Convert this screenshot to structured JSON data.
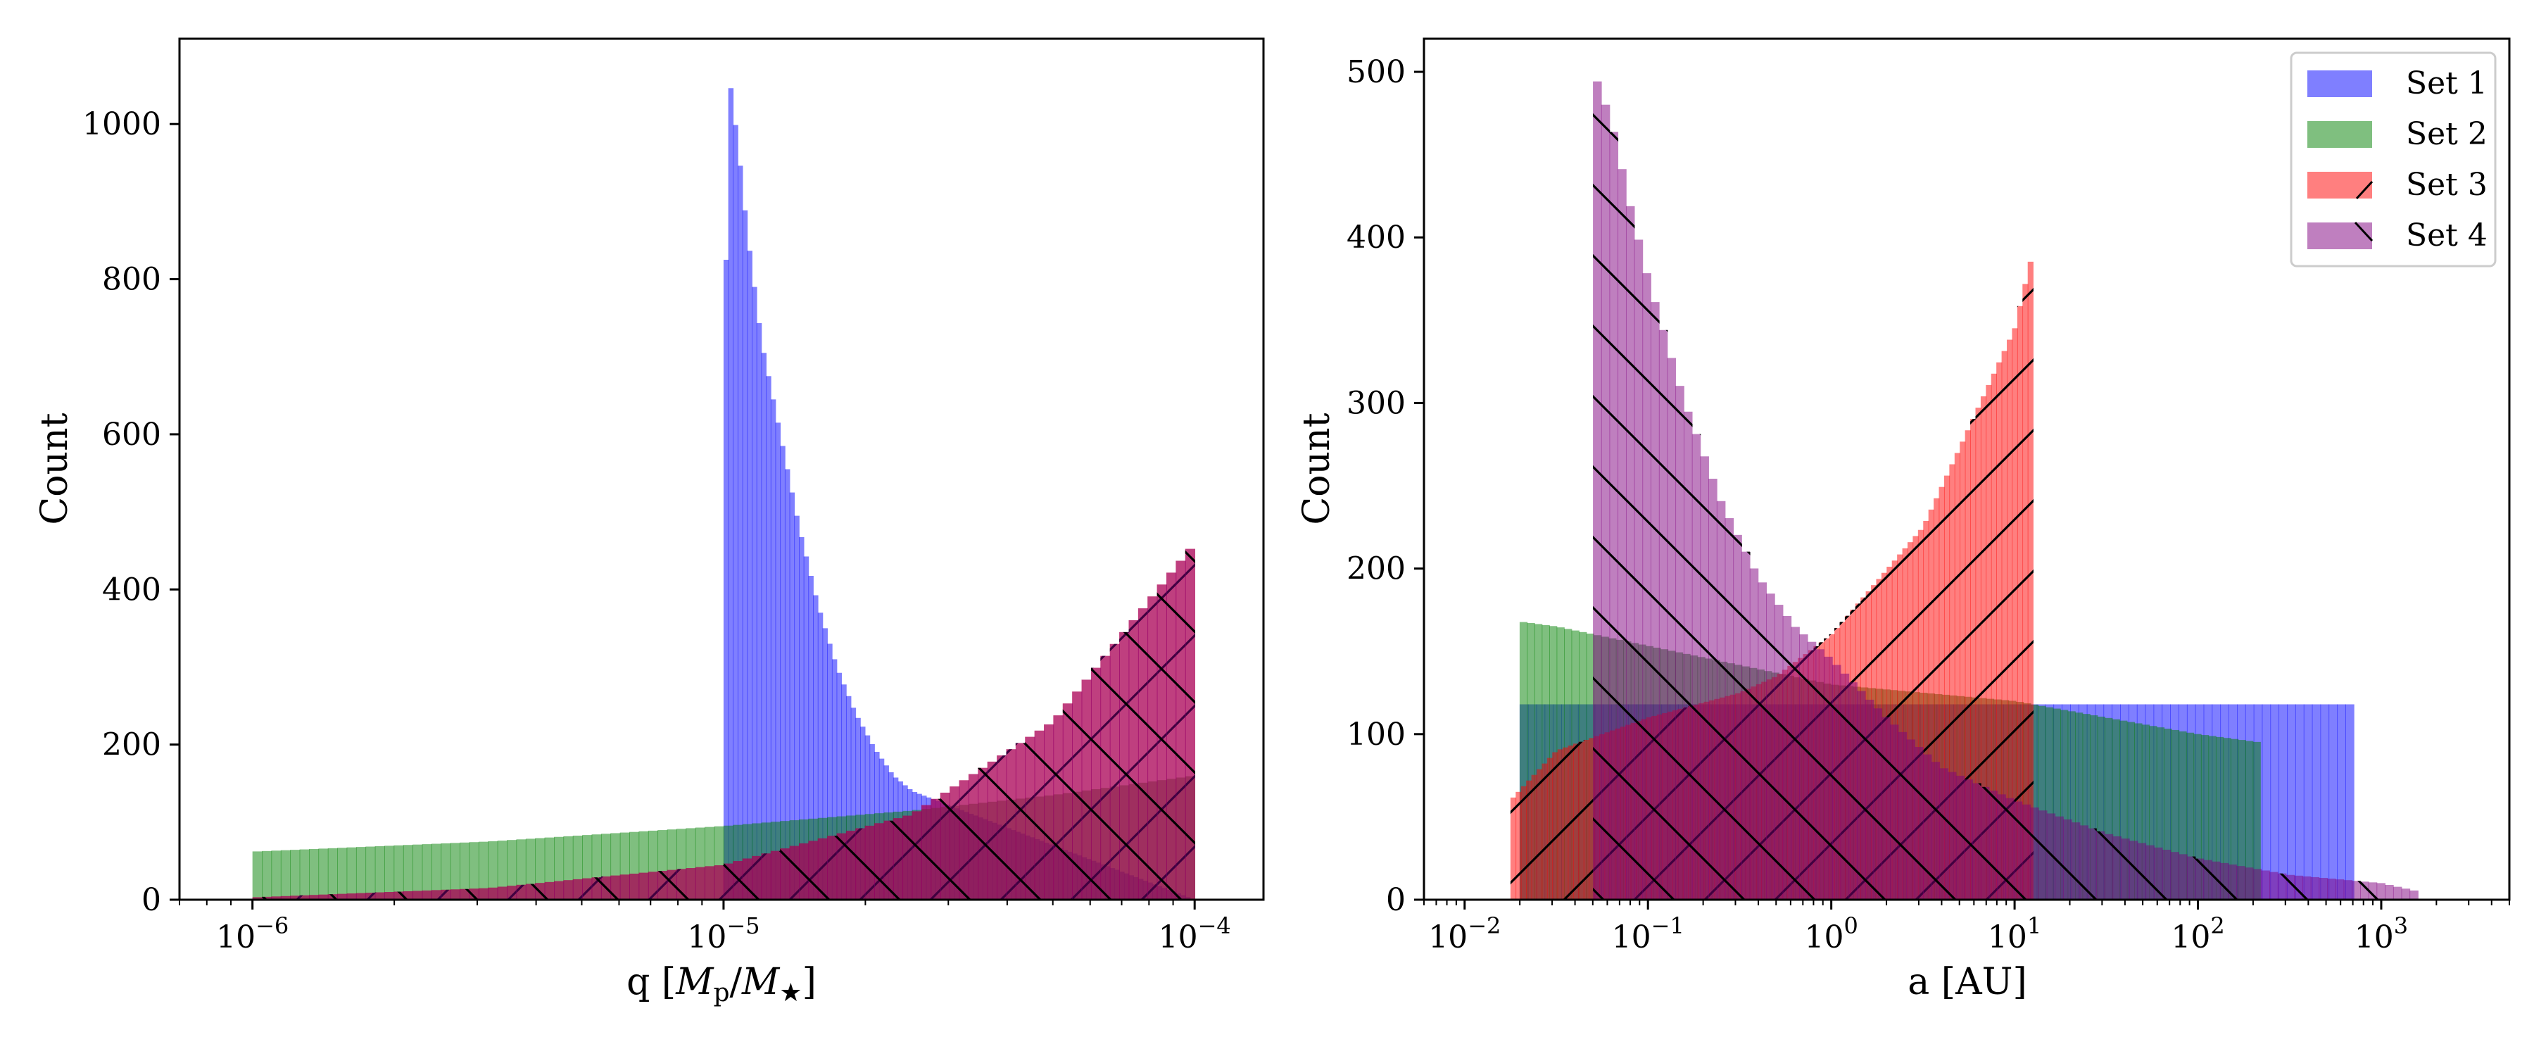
{
  "chart_data": [
    {
      "type": "histogram",
      "title": "",
      "xlabel": "q [M_p/M_★]",
      "xlabel_parts": {
        "prefix": "q [",
        "num": "M",
        "num_sub": "p",
        "slash": "/",
        "den": "M",
        "den_sub": "★",
        "suffix": "]"
      },
      "ylabel": "Count",
      "xscale": "log",
      "xlim": [
        7e-07,
        0.00014
      ],
      "ylim": [
        0,
        1110
      ],
      "x_ticks": [
        {
          "value": 1e-06,
          "label_base": "10",
          "label_exp": "−6"
        },
        {
          "value": 1e-05,
          "label_base": "10",
          "label_exp": "−5"
        },
        {
          "value": 0.0001,
          "label_base": "10",
          "label_exp": "−4"
        }
      ],
      "y_ticks": [
        {
          "value": 0,
          "label": "0"
        },
        {
          "value": 200,
          "label": "200"
        },
        {
          "value": 400,
          "label": "400"
        },
        {
          "value": 600,
          "label": "600"
        },
        {
          "value": 800,
          "label": "800"
        },
        {
          "value": 1000,
          "label": "1000"
        }
      ],
      "series": [
        {
          "name": "Set 1",
          "color": "#0000ff",
          "hatch": "none",
          "log_range": [
            -5.0,
            -4.0
          ],
          "nbins": 100,
          "anchors": [
            [
              -5.0,
              580
            ],
            [
              -4.99,
              1070
            ],
            [
              -4.97,
              975
            ],
            [
              -4.95,
              860
            ],
            [
              -4.92,
              720
            ],
            [
              -4.88,
              600
            ],
            [
              -4.84,
              480
            ],
            [
              -4.8,
              380
            ],
            [
              -4.76,
              300
            ],
            [
              -4.72,
              240
            ],
            [
              -4.68,
              195
            ],
            [
              -4.64,
              160
            ],
            [
              -4.6,
              140
            ],
            [
              -4.0,
              0
            ]
          ]
        },
        {
          "name": "Set 2",
          "color": "#008000",
          "hatch": "none",
          "log_range": [
            -6.0,
            -4.0
          ],
          "nbins": 100,
          "anchors": [
            [
              -6.0,
              62
            ],
            [
              -5.5,
              75
            ],
            [
              -5.0,
              95
            ],
            [
              -4.6,
              115
            ],
            [
              -4.3,
              135
            ],
            [
              -4.0,
              160
            ]
          ]
        },
        {
          "name": "Set 3",
          "color": "#ff0000",
          "hatch": "/",
          "log_range": [
            -6.0,
            -4.0
          ],
          "nbins": 100,
          "anchors": [
            [
              -6.0,
              3
            ],
            [
              -5.5,
              15
            ],
            [
              -5.0,
              45
            ],
            [
              -4.6,
              110
            ],
            [
              -4.3,
              230
            ],
            [
              -4.0,
              460
            ]
          ]
        },
        {
          "name": "Set 4",
          "color": "#800080",
          "hatch": "\\",
          "log_range": [
            -6.0,
            -4.0
          ],
          "nbins": 100,
          "anchors": [
            [
              -6.0,
              3
            ],
            [
              -5.5,
              15
            ],
            [
              -5.0,
              45
            ],
            [
              -4.6,
              110
            ],
            [
              -4.3,
              230
            ],
            [
              -4.0,
              460
            ]
          ]
        }
      ]
    },
    {
      "type": "histogram",
      "title": "",
      "xlabel": "a [AU]",
      "ylabel": "Count",
      "xscale": "log",
      "xlim": [
        0.006,
        5000
      ],
      "ylim": [
        0,
        520
      ],
      "x_ticks": [
        {
          "value": 0.01,
          "label_base": "10",
          "label_exp": "−2"
        },
        {
          "value": 0.1,
          "label_base": "10",
          "label_exp": "−1"
        },
        {
          "value": 1,
          "label_base": "10",
          "label_exp": "0"
        },
        {
          "value": 10,
          "label_base": "10",
          "label_exp": "1"
        },
        {
          "value": 100,
          "label_base": "10",
          "label_exp": "2"
        },
        {
          "value": 1000,
          "label_base": "10",
          "label_exp": "3"
        }
      ],
      "y_ticks": [
        {
          "value": 0,
          "label": "0"
        },
        {
          "value": 100,
          "label": "100"
        },
        {
          "value": 200,
          "label": "200"
        },
        {
          "value": 300,
          "label": "300"
        },
        {
          "value": 400,
          "label": "400"
        },
        {
          "value": 500,
          "label": "500"
        }
      ],
      "legend_position": "upper right",
      "series": [
        {
          "name": "Set 1",
          "color": "#0000ff",
          "hatch": "none",
          "log_range": [
            -1.7,
            2.85
          ],
          "nbins": 100,
          "anchors": [
            [
              -1.7,
              118
            ],
            [
              2.85,
              118
            ]
          ]
        },
        {
          "name": "Set 2",
          "color": "#008000",
          "hatch": "none",
          "log_range": [
            -1.7,
            2.34
          ],
          "nbins": 100,
          "anchors": [
            [
              -1.7,
              168
            ],
            [
              -1.5,
              165
            ],
            [
              0.0,
              130
            ],
            [
              1.0,
              120
            ],
            [
              2.0,
              100
            ],
            [
              2.34,
              95
            ]
          ]
        },
        {
          "name": "Set 3",
          "color": "#ff0000",
          "hatch": "/",
          "log_range": [
            -1.75,
            1.1
          ],
          "nbins": 100,
          "anchors": [
            [
              -1.75,
              60
            ],
            [
              -1.5,
              90
            ],
            [
              -1.0,
              110
            ],
            [
              -0.5,
              125
            ],
            [
              -0.3,
              135
            ],
            [
              0.0,
              160
            ],
            [
              0.5,
              225
            ],
            [
              1.0,
              345
            ],
            [
              1.1,
              392
            ]
          ]
        },
        {
          "name": "Set 4",
          "color": "#800080",
          "hatch": "\\",
          "log_range": [
            -1.3,
            3.2
          ],
          "nbins": 100,
          "anchors": [
            [
              -1.3,
              215
            ],
            [
              -1.28,
              495
            ],
            [
              -1.2,
              470
            ],
            [
              -1.1,
              420
            ],
            [
              -1.0,
              375
            ],
            [
              -0.8,
              300
            ],
            [
              -0.6,
              240
            ],
            [
              -0.4,
              195
            ],
            [
              -0.2,
              165
            ],
            [
              0.0,
              145
            ],
            [
              0.3,
              110
            ],
            [
              0.6,
              80
            ],
            [
              1.0,
              60
            ],
            [
              1.5,
              40
            ],
            [
              2.0,
              25
            ],
            [
              2.5,
              15
            ],
            [
              3.0,
              10
            ],
            [
              3.2,
              5
            ]
          ]
        }
      ]
    }
  ]
}
